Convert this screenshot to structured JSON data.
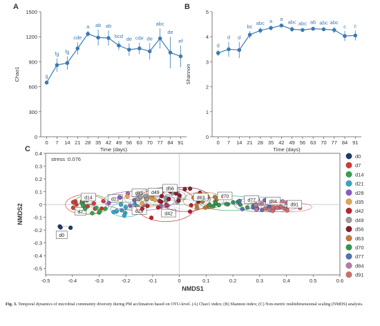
{
  "chart_data": [
    {
      "panel": "A",
      "type": "line",
      "xlabel": "Time (days)",
      "ylabel": "Chao1",
      "x": [
        0,
        7,
        14,
        21,
        28,
        35,
        42,
        49,
        56,
        63,
        70,
        77,
        84,
        91
      ],
      "values": [
        650,
        860,
        885,
        1060,
        1235,
        1190,
        1185,
        1095,
        1045,
        1060,
        1025,
        1180,
        1010,
        965
      ],
      "err": [
        25,
        80,
        80,
        75,
        35,
        95,
        90,
        55,
        75,
        70,
        100,
        120,
        190,
        130
      ],
      "letters": [
        "g",
        "fg",
        "fg",
        "cde",
        "a",
        "ab",
        "ab",
        "bcd",
        "de",
        "cde",
        "de",
        "abc",
        "de",
        "ef"
      ],
      "xticks": [
        0,
        7,
        14,
        21,
        28,
        35,
        42,
        49,
        56,
        63,
        70,
        77,
        84,
        91
      ],
      "yticks": [
        0,
        300,
        600,
        900,
        1200,
        1500
      ],
      "ylim": [
        0,
        1500
      ],
      "color": "#3a7ab4"
    },
    {
      "panel": "B",
      "type": "line",
      "xlabel": "Time (days)",
      "ylabel": "Shannon",
      "x": [
        0,
        7,
        14,
        21,
        28,
        35,
        42,
        49,
        56,
        63,
        70,
        77,
        84,
        91
      ],
      "values": [
        3.35,
        3.5,
        3.47,
        4.08,
        4.25,
        4.35,
        4.45,
        4.3,
        4.27,
        4.32,
        4.3,
        4.27,
        4.03,
        4.05
      ],
      "err": [
        0.12,
        0.3,
        0.32,
        0.15,
        0.12,
        0.1,
        0.08,
        0.1,
        0.08,
        0.08,
        0.08,
        0.12,
        0.2,
        0.2
      ],
      "letters": [
        "d",
        "d",
        "d",
        "bc",
        "abc",
        "a",
        "a",
        "abc",
        "abc",
        "ab",
        "abc",
        "abc",
        "c",
        "c"
      ],
      "xticks": [
        0,
        7,
        14,
        21,
        28,
        35,
        42,
        49,
        56,
        63,
        70,
        77,
        84,
        91
      ],
      "yticks": [
        0,
        1,
        2,
        3,
        4,
        5
      ],
      "ylim": [
        0,
        5
      ],
      "color": "#3a7ab4"
    },
    {
      "panel": "C",
      "type": "scatter",
      "xlabel": "NMDS1",
      "ylabel": "NMDS2",
      "annotation": "stress :0.076",
      "xlim": [
        -0.5,
        0.6
      ],
      "ylim": [
        -0.55,
        0.4
      ],
      "xticks": [
        -0.5,
        -0.4,
        -0.3,
        -0.2,
        -0.1,
        0,
        0.1,
        0.2,
        0.3,
        0.4,
        0.5,
        0.6
      ],
      "yticks": [
        -0.5,
        -0.4,
        -0.3,
        -0.2,
        -0.1,
        0,
        0.1,
        0.2,
        0.3,
        0.4
      ],
      "legend_position": "right",
      "groups": [
        {
          "name": "d0",
          "color": "#1d3a6e",
          "centroid": [
            -0.42,
            -0.17
          ],
          "spread": [
            0.02,
            0.02
          ],
          "n": 3,
          "label_at": [
            -0.44,
            -0.24
          ]
        },
        {
          "name": "d7",
          "color": "#d43a2f",
          "centroid": [
            -0.35,
            0.0
          ],
          "spread": [
            0.04,
            0.04
          ],
          "n": 12,
          "label_at": [
            -0.37,
            -0.055
          ]
        },
        {
          "name": "d14",
          "color": "#35a04a",
          "centroid": [
            -0.33,
            0.0
          ],
          "spread": [
            0.035,
            0.04
          ],
          "n": 12,
          "label_at": [
            -0.34,
            0.055
          ]
        },
        {
          "name": "d21",
          "color": "#2fa9c2",
          "centroid": [
            -0.2,
            -0.04
          ],
          "spread": [
            0.03,
            0.03
          ],
          "n": 12,
          "label_at": [
            -0.24,
            0.045
          ]
        },
        {
          "name": "d28",
          "color": "#8e5ac0",
          "centroid": [
            -0.15,
            0.03
          ],
          "spread": [
            0.07,
            0.04
          ],
          "n": 12,
          "label_at": [
            -0.15,
            -0.05
          ]
        },
        {
          "name": "d35",
          "color": "#e9a34c",
          "centroid": [
            -0.13,
            0.05
          ],
          "spread": [
            0.04,
            0.035
          ],
          "n": 12,
          "label_at": [
            -0.15,
            0.09
          ]
        },
        {
          "name": "d42",
          "color": "#b8232e",
          "centroid": [
            -0.05,
            0.0
          ],
          "spread": [
            0.06,
            0.07
          ],
          "n": 12,
          "label_at": [
            -0.04,
            -0.07
          ]
        },
        {
          "name": "d49",
          "color": "#9e9e9e",
          "centroid": [
            -0.07,
            0.06
          ],
          "spread": [
            0.05,
            0.035
          ],
          "n": 12,
          "label_at": [
            -0.09,
            0.095
          ]
        },
        {
          "name": "d56",
          "color": "#8c1c2c",
          "centroid": [
            0.02,
            0.04
          ],
          "spread": [
            0.05,
            0.05
          ],
          "n": 12,
          "label_at": [
            -0.035,
            0.125
          ]
        },
        {
          "name": "d63",
          "color": "#c87838",
          "centroid": [
            0.09,
            0.03
          ],
          "spread": [
            0.04,
            0.035
          ],
          "n": 12,
          "label_at": [
            0.08,
            0.055
          ]
        },
        {
          "name": "d70",
          "color": "#2b9a4f",
          "centroid": [
            0.19,
            0.01
          ],
          "spread": [
            0.06,
            0.03
          ],
          "n": 12,
          "label_at": [
            0.17,
            0.065
          ]
        },
        {
          "name": "d77",
          "color": "#5570b5",
          "centroid": [
            0.3,
            0.0
          ],
          "spread": [
            0.05,
            0.03
          ],
          "n": 12,
          "label_at": [
            0.27,
            0.035
          ]
        },
        {
          "name": "d84",
          "color": "#b87ba0",
          "centroid": [
            0.35,
            -0.01
          ],
          "spread": [
            0.05,
            0.025
          ],
          "n": 12,
          "label_at": [
            0.35,
            0.025
          ]
        },
        {
          "name": "d91",
          "color": "#d46b6b",
          "centroid": [
            0.4,
            -0.02
          ],
          "spread": [
            0.05,
            0.02
          ],
          "n": 12,
          "label_at": [
            0.43,
            0.0
          ]
        }
      ]
    }
  ],
  "panel_letters": [
    "A",
    "B",
    "C"
  ],
  "caption": {
    "lead": "Fig. 3.",
    "text": "Temporal dynamics of microbial community diversity during PM acclimation based on OTU-level. (A) Chao1 index; (B) Shannon index; (C) Non-metric multidimensional scaling (NMDS) analysis."
  }
}
